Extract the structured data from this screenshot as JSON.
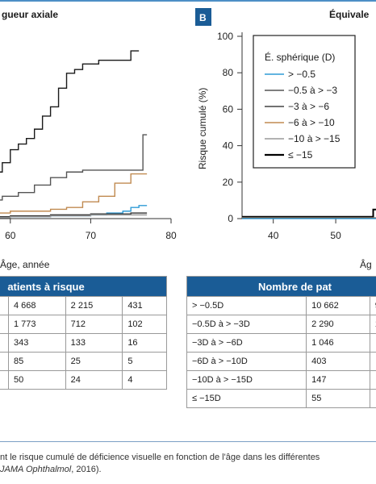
{
  "panel_left": {
    "title": "gueur axiale",
    "xaxis_title": "Âge, année"
  },
  "panel_right": {
    "badge": "B",
    "title": "Équivale",
    "yaxis_title": "Risque cumulé (%)",
    "xaxis_title": "Âg"
  },
  "chart_data": [
    {
      "type": "line",
      "panel": "A",
      "title": "…gueur axiale",
      "xlabel": "Âge, année",
      "ylabel": "",
      "xlim": [
        55,
        80
      ],
      "ylim": [
        0,
        100
      ],
      "x_ticks": [
        60,
        70,
        80
      ],
      "series": [
        {
          "color": "#1a1a1a",
          "points": [
            [
              55,
              15
            ],
            [
              56,
              16
            ],
            [
              57,
              22
            ],
            [
              58,
              25
            ],
            [
              59,
              30
            ],
            [
              60,
              37
            ],
            [
              61,
              40
            ],
            [
              62,
              43
            ],
            [
              63,
              48
            ],
            [
              64,
              55
            ],
            [
              65,
              60
            ],
            [
              66,
              70
            ],
            [
              67,
              78
            ],
            [
              68,
              80
            ],
            [
              69,
              83
            ],
            [
              71,
              85
            ],
            [
              74,
              85
            ],
            [
              75,
              90
            ],
            [
              76,
              90
            ]
          ]
        },
        {
          "color": "#555555",
          "points": [
            [
              55,
              8
            ],
            [
              57,
              10
            ],
            [
              59,
              12
            ],
            [
              61,
              14
            ],
            [
              63,
              18
            ],
            [
              65,
              22
            ],
            [
              67,
              25
            ],
            [
              69,
              26
            ],
            [
              74,
              26
            ],
            [
              76,
              26
            ],
            [
              76.5,
              45
            ],
            [
              77,
              45
            ]
          ]
        },
        {
          "color": "#c08a50",
          "points": [
            [
              55,
              2
            ],
            [
              57,
              3
            ],
            [
              60,
              4
            ],
            [
              63,
              4
            ],
            [
              65,
              5
            ],
            [
              67,
              6
            ],
            [
              69,
              9
            ],
            [
              71,
              12
            ],
            [
              73,
              19
            ],
            [
              75,
              24
            ],
            [
              77,
              24
            ]
          ]
        },
        {
          "color": "#2f9bd6",
          "points": [
            [
              55,
              0.5
            ],
            [
              60,
              1
            ],
            [
              65,
              1.5
            ],
            [
              70,
              2
            ],
            [
              72,
              3
            ],
            [
              74,
              4
            ],
            [
              75,
              6
            ],
            [
              76,
              7
            ],
            [
              77,
              7
            ]
          ]
        },
        {
          "color": "#333333",
          "points": [
            [
              55,
              1
            ],
            [
              60,
              1.5
            ],
            [
              65,
              2
            ],
            [
              70,
              2.5
            ],
            [
              75,
              3
            ],
            [
              77,
              3
            ]
          ]
        },
        {
          "color": "#999999",
          "points": [
            [
              55,
              0.5
            ],
            [
              60,
              1
            ],
            [
              65,
              1.5
            ],
            [
              70,
              2
            ],
            [
              77,
              2
            ]
          ]
        }
      ]
    },
    {
      "type": "line",
      "panel": "B",
      "title": "Équivale…",
      "xlabel": "Âg…",
      "ylabel": "Risque cumulé (%)",
      "xlim": [
        35,
        58
      ],
      "ylim": [
        0,
        100
      ],
      "x_ticks": [
        40,
        50
      ],
      "y_ticks": [
        0,
        20,
        40,
        60,
        80,
        100
      ],
      "legend": {
        "title": "É. sphérique (D)",
        "placement": "top-right",
        "entries": [
          {
            "label": "> −0.5",
            "color": "#2f9bd6"
          },
          {
            "label": "−0.5 à > −3",
            "color": "#555555"
          },
          {
            "label": "−3 à > −6",
            "color": "#444444"
          },
          {
            "label": "−6 à > −10",
            "color": "#c08a50"
          },
          {
            "label": "−10 à > −15",
            "color": "#999999"
          },
          {
            "label": "≤ −15",
            "color": "#000000"
          }
        ]
      },
      "series": [
        {
          "name": "≤ −15",
          "color": "#000000",
          "points": [
            [
              35,
              1
            ],
            [
              55,
              1
            ],
            [
              56,
              5
            ],
            [
              57,
              9
            ],
            [
              58,
              14
            ]
          ]
        },
        {
          "name": "−10 à > −15",
          "color": "#999999",
          "points": [
            [
              35,
              0.5
            ],
            [
              56,
              0.5
            ],
            [
              58,
              2
            ]
          ]
        },
        {
          "name": "−6 à > −10",
          "color": "#c08a50",
          "points": [
            [
              35,
              0.3
            ],
            [
              58,
              0.5
            ]
          ]
        },
        {
          "name": "−3 à > −6",
          "color": "#444444",
          "points": [
            [
              35,
              0.2
            ],
            [
              58,
              0.3
            ]
          ]
        },
        {
          "name": "−0.5 à > −3",
          "color": "#555555",
          "points": [
            [
              35,
              0.1
            ],
            [
              58,
              0.2
            ]
          ]
        },
        {
          "name": "> −0.5",
          "color": "#2f9bd6",
          "points": [
            [
              35,
              0
            ],
            [
              58,
              0.1
            ]
          ]
        }
      ]
    }
  ],
  "table_left": {
    "header": "atients à risque",
    "rows": [
      [
        "4 668",
        "2 215",
        "431"
      ],
      [
        "1 773",
        "712",
        "102"
      ],
      [
        "343",
        "133",
        "16"
      ],
      [
        "85",
        "25",
        "5"
      ],
      [
        "50",
        "24",
        "4"
      ]
    ]
  },
  "table_right": {
    "header": "Nombre de pat",
    "rows": [
      [
        "> −0.5D",
        "10 662",
        "9"
      ],
      [
        "−0.5D à > −3D",
        "2 290",
        "1"
      ],
      [
        "−3D à > −6D",
        "1 046",
        ""
      ],
      [
        "−6D à > −10D",
        "403",
        ""
      ],
      [
        "−10D à > −15D",
        "147",
        ""
      ],
      [
        "≤ −15D",
        "55",
        ""
      ]
    ]
  },
  "caption": {
    "line1": "nt le risque cumulé de déficience visuelle en fonction de l'âge dans les différentes",
    "line2_italic": "JAMA Ophthalmol",
    "line2_rest": ", 2016)."
  },
  "colors": {
    "accent": "#1a5c96",
    "frame_border": "#4d8fc6"
  }
}
